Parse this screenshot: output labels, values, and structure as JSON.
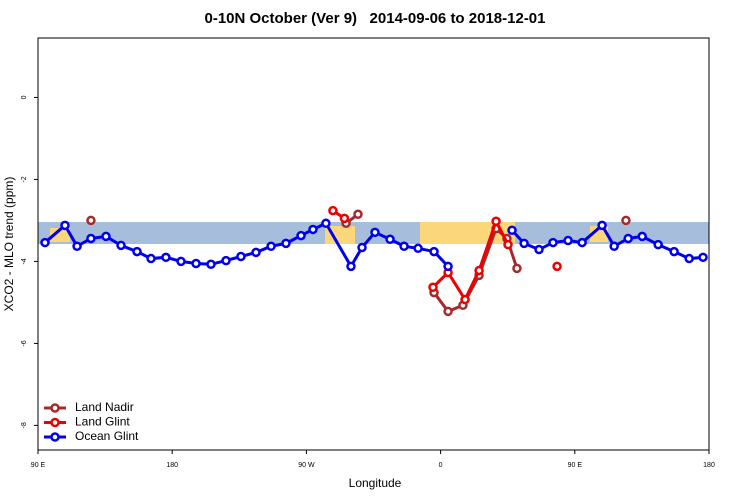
{
  "chart_data": {
    "type": "line",
    "title": "0-10N October (Ver 9)   2014-09-06 to 2018-12-01",
    "x_label": "Longitude",
    "y_label": "XCO2 - MLO trend (ppm)",
    "xlim": [
      90,
      540
    ],
    "ylim": [
      -8.6,
      1.45
    ],
    "xticks": [
      {
        "value": 90,
        "label": "90 E"
      },
      {
        "value": 180,
        "label": "180"
      },
      {
        "value": 270,
        "label": "90 W"
      },
      {
        "value": 360,
        "label": "0"
      },
      {
        "value": 450,
        "label": "90 E"
      },
      {
        "value": 540,
        "label": "180"
      }
    ],
    "yticks": [
      0,
      -2,
      -4,
      -6,
      -8
    ],
    "legend": "bottom-left",
    "series": [
      {
        "name": "Land Nadir",
        "color": "#a52a2a",
        "x": [
          125.5,
          null,
          296.6,
          304.6,
          null,
          355.6,
          365,
          375,
          385.8,
          397.2,
          404.5,
          411.2,
          null,
          484.3
        ],
        "values": [
          -3.0,
          null,
          -3.07,
          -2.85,
          null,
          -4.76,
          -5.22,
          -5.07,
          -4.34,
          -3.2,
          -3.44,
          -4.17,
          null,
          -3.0
        ]
      },
      {
        "name": "Land Glint",
        "color": "#ee0000",
        "x": [
          287.8,
          295.5,
          null,
          354.9,
          365,
          376.4,
          385.8,
          397.2,
          405.2,
          null,
          438.1
        ],
        "values": [
          -2.76,
          -2.95,
          null,
          -4.63,
          -4.27,
          -4.93,
          -4.22,
          -3.02,
          -3.59,
          null,
          -4.12
        ]
      },
      {
        "name": "Ocean Glint",
        "color": "#0000ee",
        "x": [
          94.7,
          108.1,
          116.2,
          125.5,
          135.6,
          145.7,
          156.4,
          165.8,
          175.8,
          185.9,
          196,
          206,
          216.1,
          226.1,
          236.2,
          246.3,
          256.3,
          266.4,
          274.4,
          283.1,
          299.9,
          307.3,
          316,
          326.1,
          335.5,
          344.9,
          355.6,
          365,
          null,
          407.9,
          416,
          426,
          435.4,
          445.5,
          454.9,
          468.3,
          476.4,
          485.8,
          495.2,
          505.9,
          516.6,
          526.7,
          536
        ],
        "values": [
          -3.54,
          -3.12,
          -3.63,
          -3.44,
          -3.39,
          -3.61,
          -3.76,
          -3.93,
          -3.9,
          -4.0,
          -4.05,
          -4.07,
          -3.98,
          -3.88,
          -3.78,
          -3.63,
          -3.56,
          -3.37,
          -3.22,
          -3.07,
          -4.12,
          -3.66,
          -3.29,
          -3.46,
          -3.63,
          -3.68,
          -3.76,
          -4.12,
          null,
          -3.24,
          -3.56,
          -3.71,
          -3.54,
          -3.49,
          -3.54,
          -3.12,
          -3.63,
          -3.44,
          -3.39,
          -3.59,
          -3.76,
          -3.93,
          -3.9
        ]
      }
    ]
  }
}
